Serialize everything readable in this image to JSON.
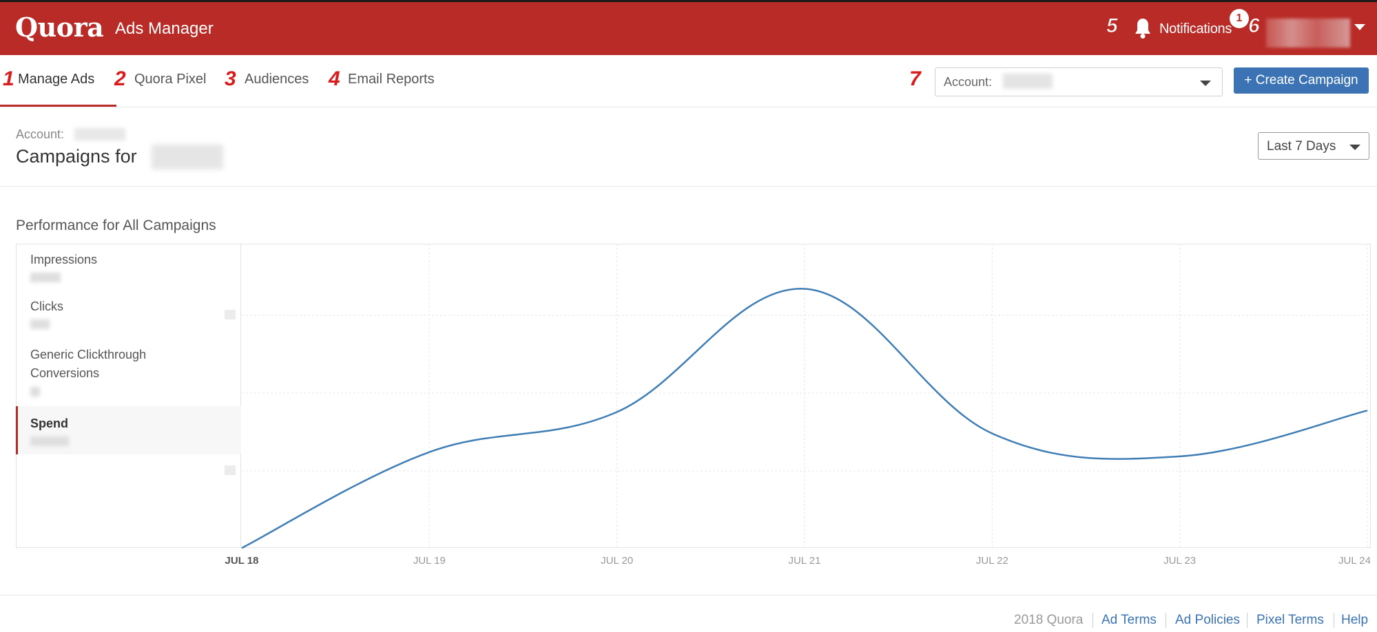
{
  "header": {
    "logo": "Quora",
    "app_title": "Ads Manager",
    "notifications_label": "Notifications",
    "notifications_count": "1",
    "markers": {
      "notifications": "5",
      "user": "6"
    }
  },
  "subnav": {
    "tabs": [
      {
        "num": "1",
        "label": "Manage Ads"
      },
      {
        "num": "2",
        "label": "Quora Pixel"
      },
      {
        "num": "3",
        "label": "Audiences"
      },
      {
        "num": "4",
        "label": "Email Reports"
      }
    ],
    "account_marker": "7",
    "account_label": "Account:",
    "create_button": "+ Create Campaign"
  },
  "page": {
    "account_label": "Account:",
    "title": "Campaigns for",
    "date_range": "Last 7 Days",
    "performance_title": "Performance for All Campaigns"
  },
  "metrics": [
    {
      "name": "Impressions"
    },
    {
      "name": "Clicks"
    },
    {
      "name": "Generic Clickthrough Conversions"
    },
    {
      "name": "Spend",
      "active": true
    }
  ],
  "chart_data": {
    "type": "line",
    "x": [
      "JUL 18",
      "JUL 19",
      "JUL 20",
      "JUL 21",
      "JUL 22",
      "JUL 23",
      "JUL 24"
    ],
    "series": [
      {
        "values": [
          0,
          0.335,
          0.475,
          0.905,
          0.4,
          0.32,
          0.48
        ]
      }
    ],
    "xlabel": "",
    "ylabel": "",
    "ylim": [
      0,
      1
    ],
    "grid": true,
    "line_color": "#3f7db5"
  },
  "footer": {
    "copyright": "2018 Quora",
    "links": [
      "Ad Terms",
      "Ad Policies",
      "Pixel Terms",
      "Help"
    ]
  },
  "colors": {
    "brand": "#b92b27",
    "accent": "#3b73b4"
  }
}
